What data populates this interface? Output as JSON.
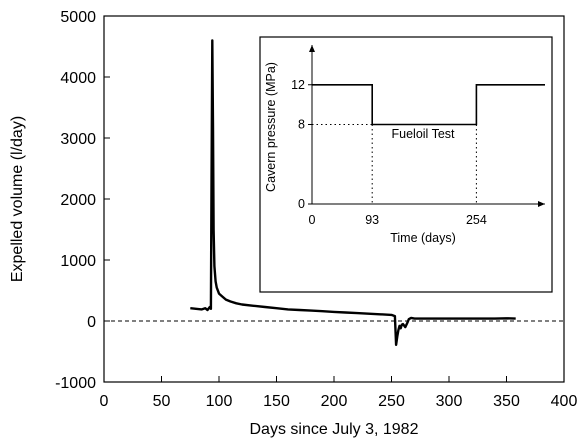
{
  "chart_data": [
    {
      "type": "line",
      "title": "",
      "xlabel": "Days since July 3, 1982",
      "ylabel": "Expelled volume (l/day)",
      "xlim": [
        0,
        400
      ],
      "ylim": [
        -1000,
        5000
      ],
      "xticks": [
        0,
        50,
        100,
        150,
        200,
        250,
        300,
        350,
        400
      ],
      "yticks": [
        -1000,
        0,
        1000,
        2000,
        3000,
        4000,
        5000
      ],
      "reference_line": {
        "y": 0,
        "style": "dashed"
      },
      "grid": false,
      "series": [
        {
          "x": [
            75,
            80,
            85,
            88,
            90,
            92,
            93,
            93.6,
            94.2,
            94.8,
            95.3,
            96,
            97,
            98,
            100,
            103,
            106,
            110,
            115,
            120,
            130,
            140,
            150,
            160,
            170,
            180,
            190,
            200,
            210,
            220,
            230,
            240,
            250,
            253,
            254,
            255,
            256,
            257,
            258,
            259,
            260,
            262,
            264,
            265,
            267,
            270,
            280,
            300,
            320,
            340,
            350,
            358
          ],
          "y": [
            210,
            200,
            190,
            210,
            180,
            230,
            200,
            2500,
            4600,
            3200,
            1500,
            900,
            650,
            550,
            450,
            400,
            350,
            320,
            290,
            270,
            250,
            230,
            210,
            190,
            180,
            170,
            160,
            150,
            140,
            130,
            120,
            110,
            100,
            80,
            -390,
            -250,
            -150,
            -80,
            -120,
            -60,
            -50,
            -100,
            -20,
            30,
            50,
            40,
            40,
            40,
            40,
            40,
            45,
            40
          ]
        }
      ]
    },
    {
      "type": "line",
      "title": "",
      "xlabel": "Time (days)",
      "ylabel": "Cavern pressure (MPa)",
      "xticks": [
        0,
        93,
        254
      ],
      "yticks": [
        0,
        8,
        12
      ],
      "annotation": "Fueloil Test",
      "series": [
        {
          "x": [
            0,
            93,
            93,
            254,
            254,
            360
          ],
          "y": [
            12,
            12,
            8,
            8,
            12,
            12
          ]
        }
      ]
    }
  ]
}
